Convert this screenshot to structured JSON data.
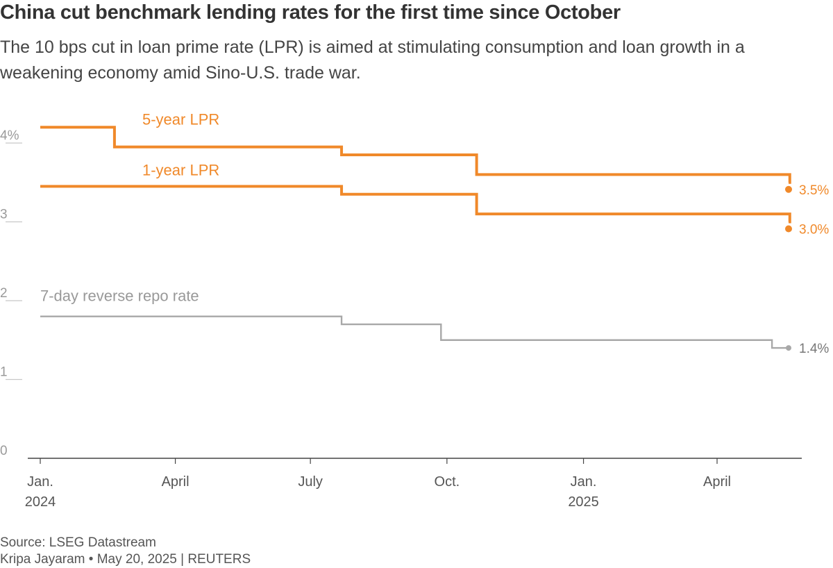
{
  "header": {
    "title": "China cut benchmark lending rates for the first time since October",
    "subtitle": "The 10 bps cut in loan prime rate (LPR) is aimed at stimulating consumption and loan growth in a weakening economy amid Sino-U.S. trade war."
  },
  "footer": {
    "source": "Source: LSEG Datastream",
    "credit": "Kripa Jayaram • May 20, 2025 | REUTERS"
  },
  "colors": {
    "lpr": "#f0892a",
    "repo": "#a8a8a8",
    "axis": "#444444",
    "grid": "#c8c8c8"
  },
  "chart_data": {
    "type": "line",
    "line_style": "step",
    "x_range": [
      "2024-01-01",
      "2025-05-20"
    ],
    "y_range": [
      0,
      4
    ],
    "y_ticks": [
      {
        "value": 0,
        "label": "0"
      },
      {
        "value": 1,
        "label": "1"
      },
      {
        "value": 2,
        "label": "2"
      },
      {
        "value": 3,
        "label": "3"
      },
      {
        "value": 4,
        "label": "4%"
      }
    ],
    "x_ticks": [
      {
        "date": "2024-01-01",
        "label": "Jan.",
        "sublabel": "2024"
      },
      {
        "date": "2024-04-01",
        "label": "April",
        "sublabel": ""
      },
      {
        "date": "2024-07-01",
        "label": "July",
        "sublabel": ""
      },
      {
        "date": "2024-10-01",
        "label": "Oct.",
        "sublabel": ""
      },
      {
        "date": "2025-01-01",
        "label": "Jan.",
        "sublabel": "2025"
      },
      {
        "date": "2025-04-01",
        "label": "April",
        "sublabel": ""
      }
    ],
    "grid": false,
    "series": [
      {
        "name": "5-year LPR",
        "color": "#f0892a",
        "end_label": "3.5%",
        "points": [
          {
            "x": "2024-01-01",
            "y": 4.2
          },
          {
            "x": "2024-02-20",
            "y": 3.95
          },
          {
            "x": "2024-07-22",
            "y": 3.85
          },
          {
            "x": "2024-10-21",
            "y": 3.6
          },
          {
            "x": "2025-05-20",
            "y": 3.5
          }
        ]
      },
      {
        "name": "1-year LPR",
        "color": "#f0892a",
        "end_label": "3.0%",
        "points": [
          {
            "x": "2024-01-01",
            "y": 3.45
          },
          {
            "x": "2024-07-22",
            "y": 3.35
          },
          {
            "x": "2024-10-21",
            "y": 3.1
          },
          {
            "x": "2025-05-20",
            "y": 3.0
          }
        ]
      },
      {
        "name": "7-day reverse repo rate",
        "color": "#a8a8a8",
        "end_label": "1.4%",
        "points": [
          {
            "x": "2024-01-01",
            "y": 1.8
          },
          {
            "x": "2024-07-22",
            "y": 1.7
          },
          {
            "x": "2024-09-27",
            "y": 1.5
          },
          {
            "x": "2025-05-08",
            "y": 1.4
          },
          {
            "x": "2025-05-20",
            "y": 1.4
          }
        ]
      }
    ]
  }
}
